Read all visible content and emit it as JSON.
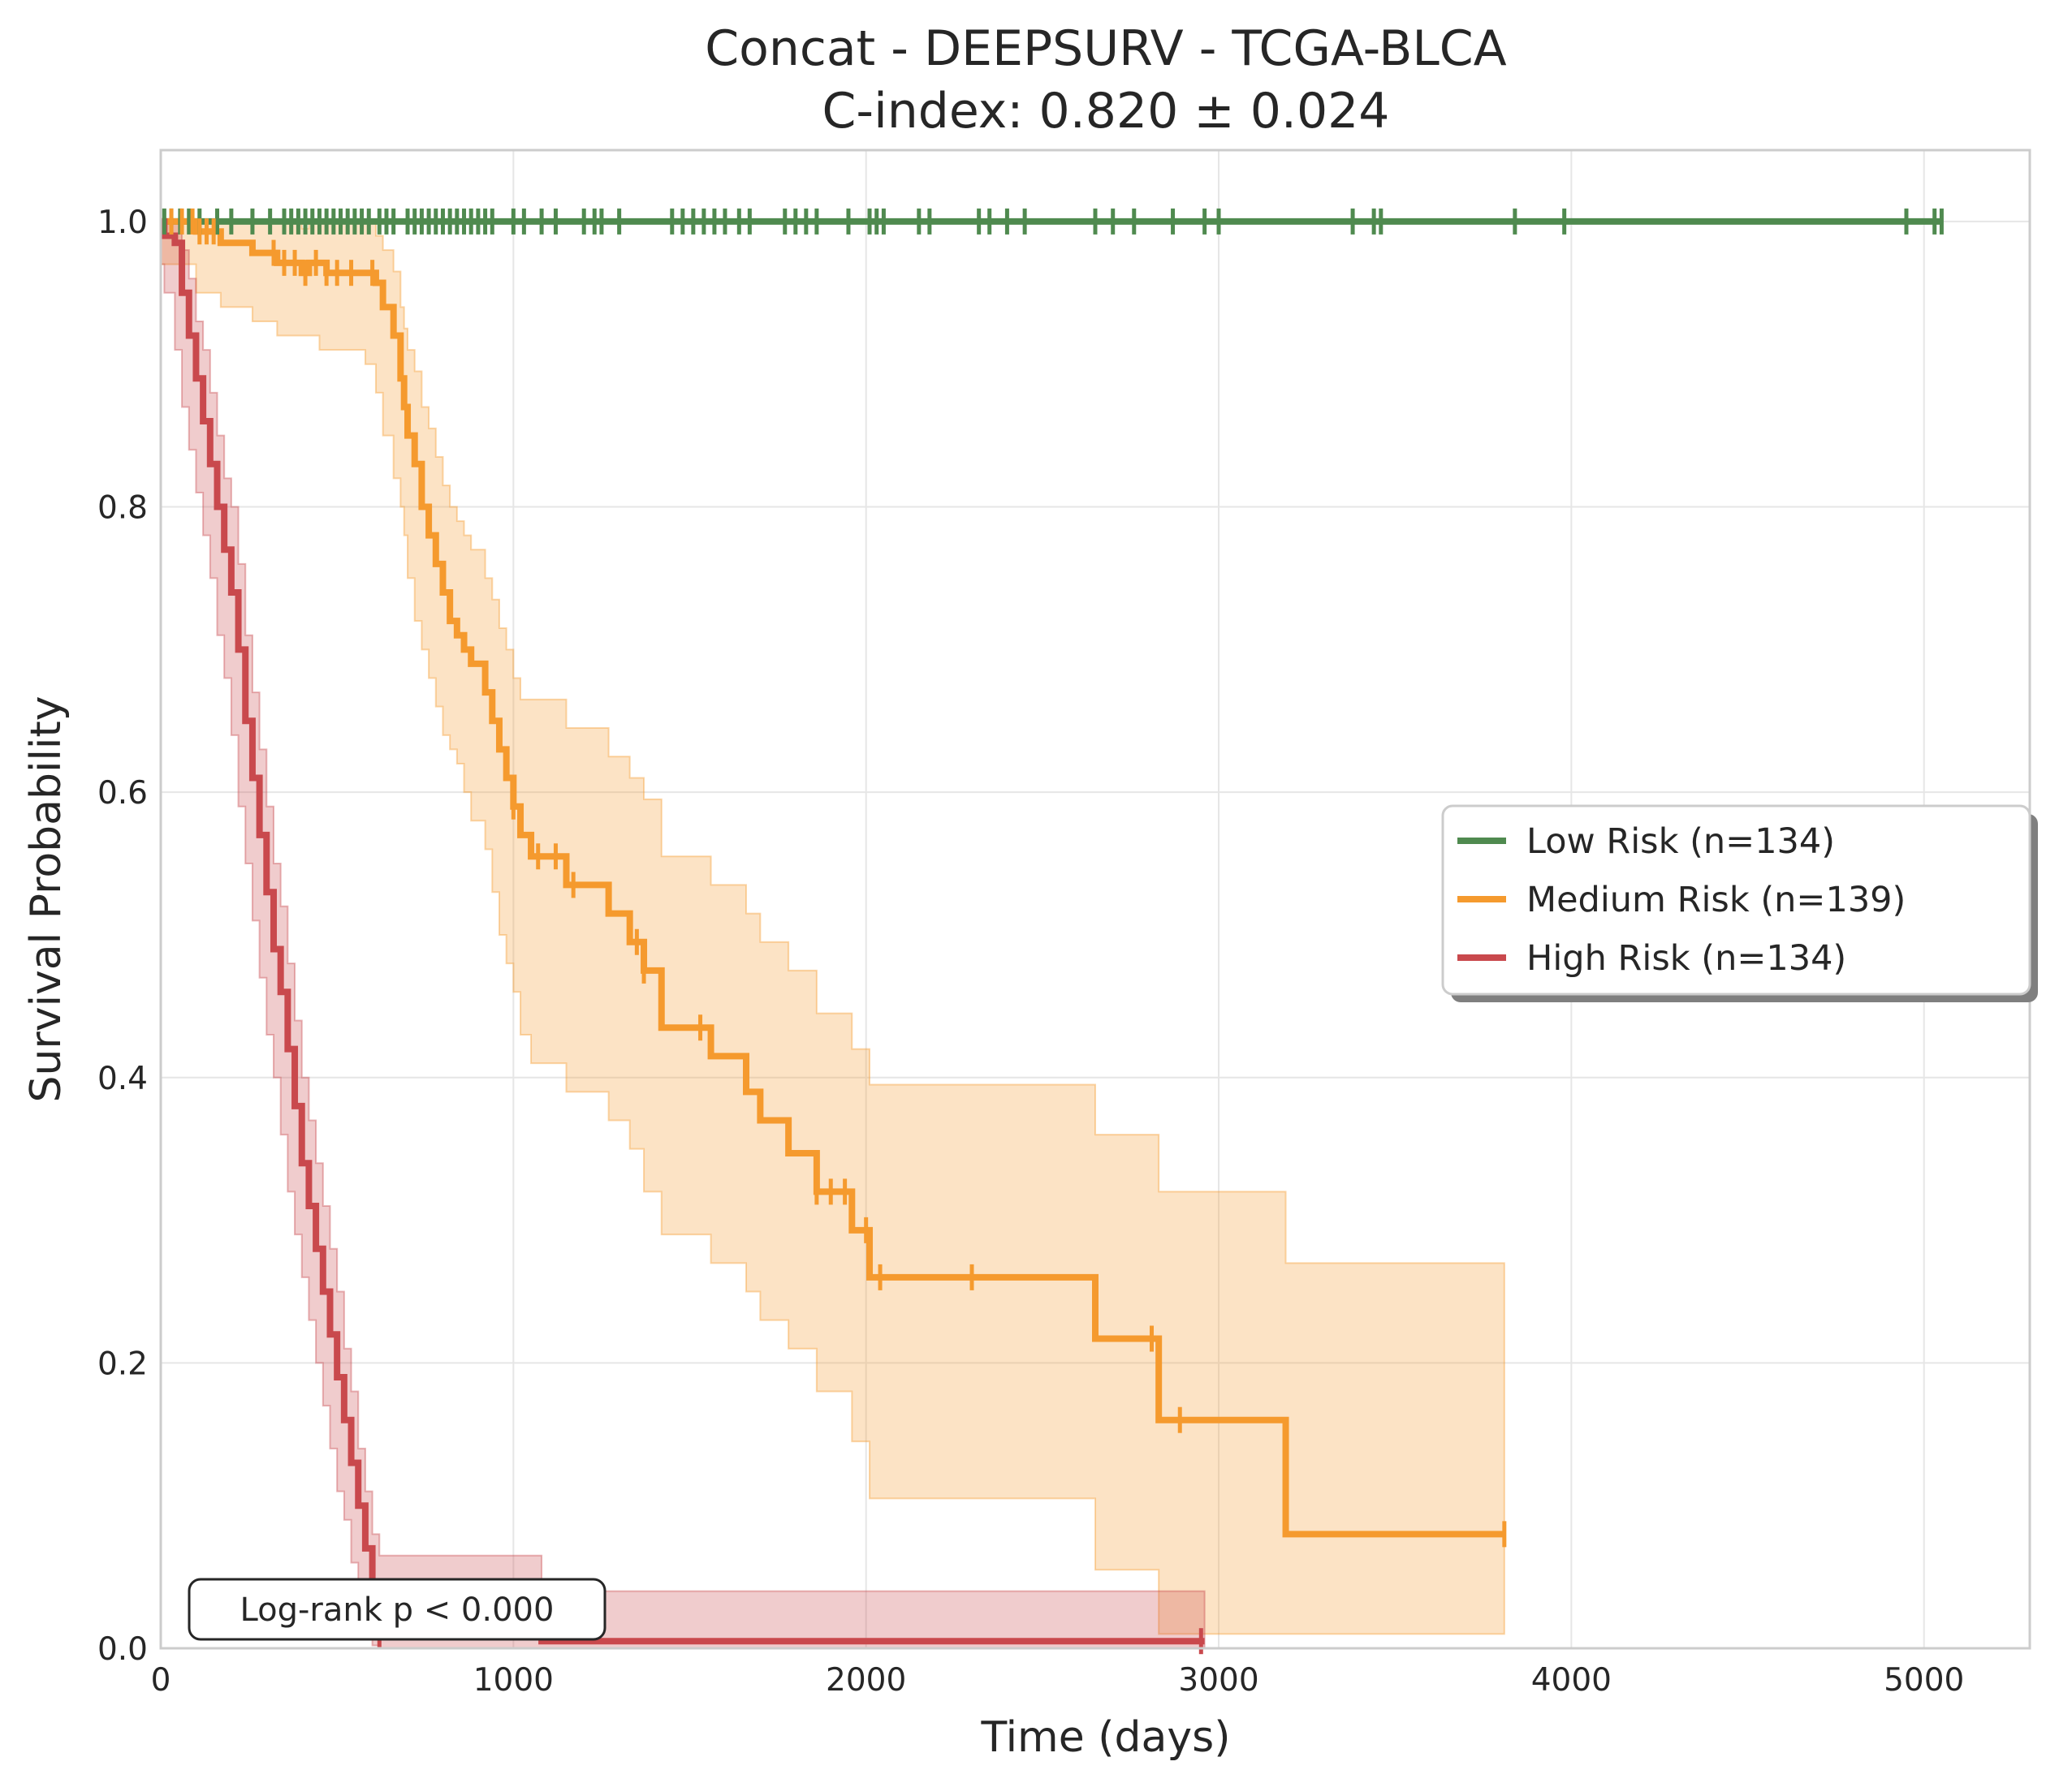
{
  "chart_data": {
    "type": "line",
    "title": "Concat - DEEPSURV - TCGA-BLCA",
    "subtitle": "C-index: 0.820 ± 0.024",
    "xlabel": "Time (days)",
    "ylabel": "Survival Probability",
    "xlim": [
      0,
      5300
    ],
    "ylim": [
      0,
      1.05
    ],
    "xticks": [
      0,
      1000,
      2000,
      3000,
      4000,
      5000
    ],
    "xtick_labels": [
      "0",
      "1000",
      "2000",
      "3000",
      "4000",
      "5000"
    ],
    "yticks": [
      0,
      0.2,
      0.4,
      0.6,
      0.8,
      1.0
    ],
    "ytick_labels": [
      "0.0",
      "0.2",
      "0.4",
      "0.6",
      "0.8",
      "1.0"
    ],
    "grid": true,
    "legend_position": "right-center",
    "annotation": "Log-rank p < 0.000",
    "series": [
      {
        "name": "Low Risk (n=134)",
        "color": "#4f8a4f",
        "x": [
          0,
          5050
        ],
        "y": [
          1.0,
          1.0
        ],
        "ci_lower": [],
        "ci_upper": [],
        "censor_times": [
          10,
          30,
          55,
          80,
          110,
          160,
          200,
          260,
          310,
          350,
          370,
          390,
          410,
          430,
          450,
          470,
          490,
          510,
          530,
          550,
          570,
          590,
          620,
          640,
          660,
          700,
          720,
          740,
          760,
          780,
          800,
          820,
          840,
          860,
          880,
          900,
          920,
          940,
          1000,
          1030,
          1080,
          1120,
          1200,
          1230,
          1250,
          1300,
          1450,
          1480,
          1510,
          1540,
          1570,
          1600,
          1640,
          1670,
          1770,
          1800,
          1830,
          1860,
          1950,
          2010,
          2030,
          2050,
          2150,
          2180,
          2320,
          2350,
          2400,
          2450,
          2650,
          2700,
          2760,
          2870,
          2960,
          3000,
          3380,
          3440,
          3460,
          3840,
          3980,
          4950,
          5030,
          5050
        ]
      },
      {
        "name": "Medium Risk (n=139)",
        "color": "#f59a2e",
        "x": [
          0,
          100,
          170,
          260,
          330,
          400,
          420,
          450,
          470,
          520,
          580,
          610,
          630,
          660,
          680,
          690,
          700,
          720,
          740,
          760,
          780,
          800,
          820,
          840,
          860,
          880,
          920,
          940,
          960,
          980,
          1000,
          1020,
          1050,
          1150,
          1270,
          1330,
          1370,
          1420,
          1560,
          1660,
          1700,
          1780,
          1860,
          1960,
          2010,
          2650,
          2830,
          3190,
          3810
        ],
        "y": [
          1.0,
          0.993,
          0.985,
          0.978,
          0.971,
          0.964,
          0.971,
          0.971,
          0.964,
          0.964,
          0.964,
          0.957,
          0.94,
          0.92,
          0.89,
          0.87,
          0.85,
          0.83,
          0.8,
          0.78,
          0.76,
          0.74,
          0.72,
          0.71,
          0.7,
          0.69,
          0.67,
          0.65,
          0.63,
          0.61,
          0.59,
          0.57,
          0.555,
          0.535,
          0.515,
          0.495,
          0.475,
          0.435,
          0.415,
          0.39,
          0.37,
          0.347,
          0.32,
          0.293,
          0.26,
          0.217,
          0.16,
          0.08,
          0.08
        ],
        "ci_lower": [
          1.0,
          0.97,
          0.95,
          0.94,
          0.93,
          0.92,
          0.92,
          0.92,
          0.91,
          0.91,
          0.91,
          0.9,
          0.88,
          0.85,
          0.82,
          0.8,
          0.78,
          0.75,
          0.72,
          0.7,
          0.68,
          0.66,
          0.64,
          0.63,
          0.62,
          0.6,
          0.58,
          0.56,
          0.53,
          0.5,
          0.48,
          0.46,
          0.43,
          0.41,
          0.39,
          0.37,
          0.35,
          0.32,
          0.29,
          0.27,
          0.25,
          0.23,
          0.21,
          0.18,
          0.145,
          0.105,
          0.055,
          0.01,
          0.01
        ],
        "ci_upper": [
          1.0,
          1.0,
          1.0,
          1.0,
          1.0,
          0.995,
          1.0,
          1.0,
          1.0,
          1.0,
          1.0,
          0.99,
          0.98,
          0.965,
          0.94,
          0.925,
          0.91,
          0.895,
          0.87,
          0.855,
          0.835,
          0.815,
          0.8,
          0.79,
          0.78,
          0.77,
          0.75,
          0.735,
          0.715,
          0.7,
          0.68,
          0.665,
          0.665,
          0.645,
          0.625,
          0.61,
          0.595,
          0.555,
          0.535,
          0.515,
          0.495,
          0.475,
          0.445,
          0.42,
          0.395,
          0.36,
          0.32,
          0.27,
          0.27
        ],
        "censor_times": [
          30,
          60,
          90,
          110,
          130,
          150,
          320,
          350,
          380,
          410,
          440,
          470,
          500,
          540,
          600,
          1000,
          1070,
          1120,
          1170,
          1350,
          1370,
          1530,
          1860,
          1900,
          1940,
          2000,
          2040,
          2300,
          2810,
          2890,
          3810
        ]
      },
      {
        "name": "High Risk (n=134)",
        "color": "#c9494d",
        "x": [
          0,
          10,
          40,
          60,
          80,
          100,
          120,
          140,
          160,
          180,
          200,
          220,
          240,
          260,
          280,
          300,
          320,
          340,
          360,
          380,
          400,
          420,
          440,
          460,
          480,
          500,
          520,
          540,
          560,
          580,
          600,
          620,
          1080,
          2960
        ],
        "y": [
          1.0,
          0.99,
          0.985,
          0.95,
          0.92,
          0.89,
          0.86,
          0.83,
          0.8,
          0.77,
          0.74,
          0.7,
          0.65,
          0.61,
          0.57,
          0.53,
          0.49,
          0.46,
          0.42,
          0.38,
          0.34,
          0.31,
          0.28,
          0.25,
          0.22,
          0.19,
          0.16,
          0.13,
          0.1,
          0.07,
          0.045,
          0.01,
          0.005,
          0.005
        ],
        "ci_lower": [
          1.0,
          0.97,
          0.95,
          0.91,
          0.87,
          0.84,
          0.81,
          0.78,
          0.75,
          0.71,
          0.68,
          0.64,
          0.59,
          0.55,
          0.51,
          0.47,
          0.43,
          0.4,
          0.36,
          0.32,
          0.29,
          0.26,
          0.23,
          0.2,
          0.17,
          0.14,
          0.11,
          0.09,
          0.06,
          0.04,
          0.02,
          0.002,
          0.0,
          0.0
        ],
        "ci_upper": [
          1.0,
          1.0,
          1.0,
          0.98,
          0.96,
          0.93,
          0.91,
          0.88,
          0.85,
          0.82,
          0.8,
          0.76,
          0.71,
          0.67,
          0.63,
          0.59,
          0.55,
          0.52,
          0.48,
          0.44,
          0.4,
          0.37,
          0.34,
          0.31,
          0.28,
          0.25,
          0.21,
          0.18,
          0.14,
          0.11,
          0.08,
          0.065,
          0.04,
          0.04
        ],
        "censor_times": [
          620,
          2950
        ]
      }
    ]
  }
}
